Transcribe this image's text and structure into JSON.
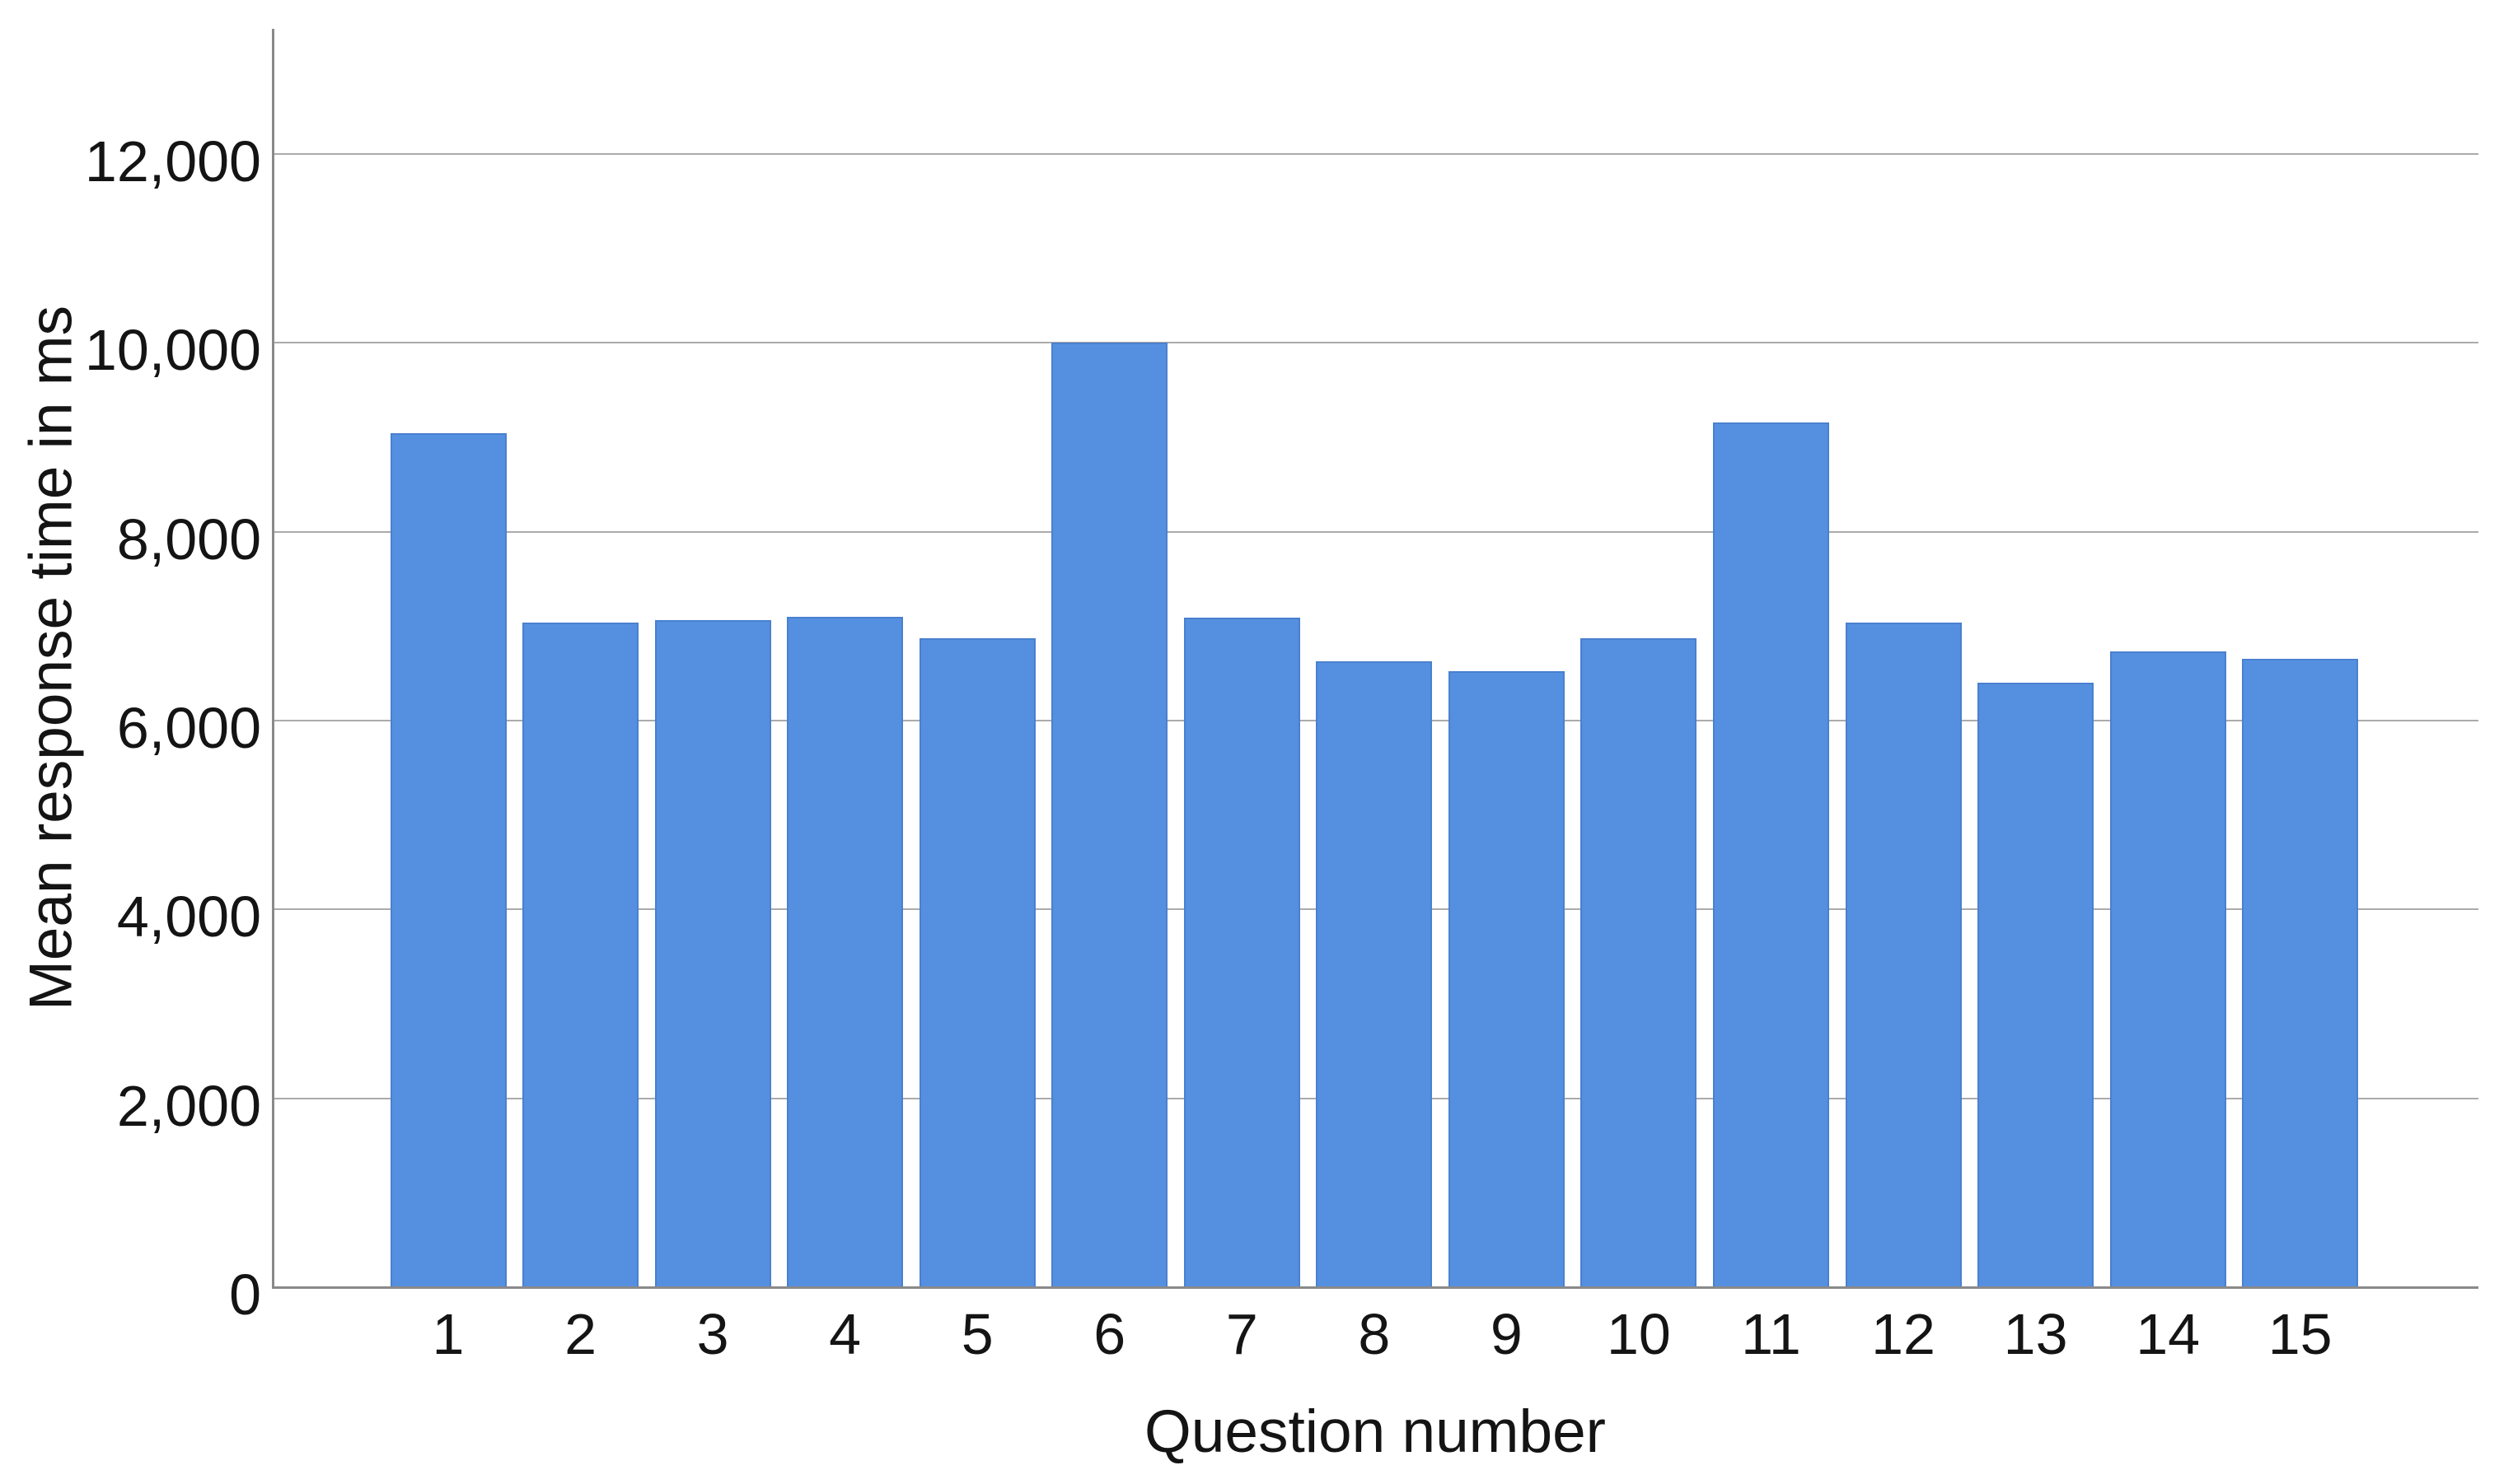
{
  "chart_data": {
    "type": "bar",
    "title": "",
    "xlabel": "Question number",
    "ylabel": "Mean response time in ms",
    "categories": [
      "1",
      "2",
      "3",
      "4",
      "5",
      "6",
      "7",
      "8",
      "9",
      "10",
      "11",
      "12",
      "13",
      "14",
      "15"
    ],
    "values": [
      9040,
      7040,
      7060,
      7100,
      6870,
      10000,
      7090,
      6630,
      6520,
      6870,
      9160,
      7040,
      6400,
      6730,
      6650
    ],
    "yticks": [
      {
        "value": 0,
        "label": "0"
      },
      {
        "value": 2000,
        "label": "2,000"
      },
      {
        "value": 4000,
        "label": "4,000"
      },
      {
        "value": 6000,
        "label": "6,000"
      },
      {
        "value": 8000,
        "label": "8,000"
      },
      {
        "value": 10000,
        "label": "10,000"
      },
      {
        "value": 12000,
        "label": "12,000"
      }
    ],
    "ylim": [
      0,
      13300
    ],
    "grid": "horizontal-only",
    "legend": "none",
    "colors": {
      "bar_fill": "#5590E0",
      "bar_border": "#4A80CF",
      "gridline": "#ABABAB",
      "axis_line": "#8A8A8A",
      "text": "#141414",
      "background": "#FFFFFF"
    }
  }
}
